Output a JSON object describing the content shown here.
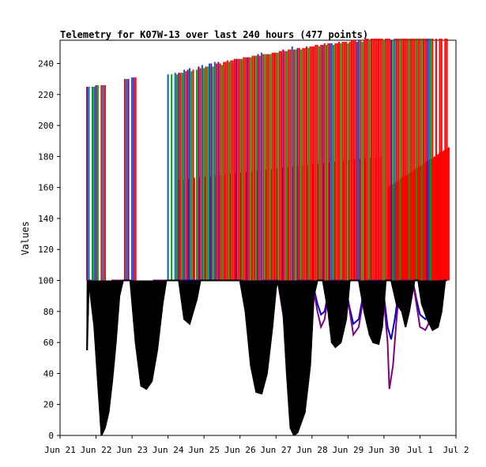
{
  "chart_data": {
    "type": "line",
    "title": "Telemetry for K07W-13 over last 240 hours (477 points)",
    "xlabel": "",
    "ylabel": "Values",
    "x_ticks": [
      "Jun 21",
      "Jun 22",
      "Jun 23",
      "Jun 24",
      "Jun 25",
      "Jun 26",
      "Jun 27",
      "Jun 28",
      "Jun 29",
      "Jun 30",
      "Jul 1",
      "Jul 2"
    ],
    "x_range_days": [
      0,
      11
    ],
    "ylim": [
      0,
      255
    ],
    "y_ticks": [
      0,
      20,
      40,
      60,
      80,
      100,
      120,
      140,
      160,
      180,
      200,
      220,
      240
    ],
    "grid": false,
    "legend": "none",
    "series": [
      {
        "color": "#000000",
        "role": "baseline",
        "points": [
          [
            0.75,
            55
          ],
          [
            0.8,
            100
          ],
          [
            0.95,
            70
          ],
          [
            1.05,
            35
          ],
          [
            1.15,
            0
          ],
          [
            1.25,
            5
          ],
          [
            1.35,
            15
          ],
          [
            1.45,
            35
          ],
          [
            1.55,
            60
          ],
          [
            1.65,
            90
          ],
          [
            1.75,
            100
          ],
          [
            1.95,
            100
          ],
          [
            2.1,
            60
          ],
          [
            2.25,
            32
          ],
          [
            2.4,
            30
          ],
          [
            2.55,
            35
          ],
          [
            2.7,
            55
          ],
          [
            2.85,
            85
          ],
          [
            2.95,
            100
          ],
          [
            3.3,
            100
          ],
          [
            3.45,
            75
          ],
          [
            3.6,
            72
          ],
          [
            3.7,
            80
          ],
          [
            3.8,
            88
          ],
          [
            3.9,
            100
          ],
          [
            5.0,
            100
          ],
          [
            5.15,
            80
          ],
          [
            5.3,
            45
          ],
          [
            5.45,
            28
          ],
          [
            5.6,
            27
          ],
          [
            5.75,
            40
          ],
          [
            5.9,
            70
          ],
          [
            6.0,
            95
          ],
          [
            6.05,
            100
          ],
          [
            6.2,
            80
          ],
          [
            6.3,
            40
          ],
          [
            6.4,
            5
          ],
          [
            6.5,
            0
          ],
          [
            6.6,
            2
          ],
          [
            6.8,
            15
          ],
          [
            6.95,
            45
          ],
          [
            7.05,
            90
          ],
          [
            7.15,
            100
          ],
          [
            7.3,
            100
          ],
          [
            7.45,
            80
          ],
          [
            7.55,
            60
          ],
          [
            7.65,
            57
          ],
          [
            7.8,
            60
          ],
          [
            7.95,
            75
          ],
          [
            8.05,
            100
          ],
          [
            8.3,
            100
          ],
          [
            8.45,
            80
          ],
          [
            8.6,
            65
          ],
          [
            8.7,
            60
          ],
          [
            8.85,
            59
          ],
          [
            8.95,
            70
          ],
          [
            9.05,
            100
          ],
          [
            9.2,
            100
          ],
          [
            9.35,
            85
          ],
          [
            9.5,
            80
          ],
          [
            9.6,
            70
          ],
          [
            9.7,
            80
          ],
          [
            9.85,
            100
          ],
          [
            9.95,
            100
          ],
          [
            10.05,
            85
          ],
          [
            10.2,
            75
          ],
          [
            10.35,
            68
          ],
          [
            10.5,
            70
          ],
          [
            10.6,
            80
          ],
          [
            10.7,
            100
          ],
          [
            10.75,
            100
          ]
        ]
      },
      {
        "color": "#7f007f",
        "role": "lower envelope",
        "points": [
          [
            0.75,
            100
          ],
          [
            0.85,
            100
          ],
          [
            0.95,
            92
          ],
          [
            1.05,
            80
          ],
          [
            1.15,
            70
          ],
          [
            1.25,
            75
          ],
          [
            1.35,
            95
          ],
          [
            1.45,
            100
          ],
          [
            2.0,
            100
          ],
          [
            2.1,
            85
          ],
          [
            2.2,
            75
          ],
          [
            2.35,
            78
          ],
          [
            2.5,
            92
          ],
          [
            2.6,
            100
          ],
          [
            3.4,
            100
          ],
          [
            3.55,
            93
          ],
          [
            3.65,
            90
          ],
          [
            3.75,
            95
          ],
          [
            3.85,
            100
          ],
          [
            5.1,
            100
          ],
          [
            5.25,
            80
          ],
          [
            5.35,
            72
          ],
          [
            5.45,
            78
          ],
          [
            5.55,
            95
          ],
          [
            5.65,
            100
          ],
          [
            6.05,
            100
          ],
          [
            6.15,
            85
          ],
          [
            6.25,
            70
          ],
          [
            6.4,
            78
          ],
          [
            6.5,
            95
          ],
          [
            6.6,
            100
          ],
          [
            7.0,
            100
          ],
          [
            7.15,
            80
          ],
          [
            7.25,
            70
          ],
          [
            7.35,
            75
          ],
          [
            7.45,
            90
          ],
          [
            7.55,
            100
          ],
          [
            7.9,
            100
          ],
          [
            8.05,
            80
          ],
          [
            8.15,
            65
          ],
          [
            8.3,
            70
          ],
          [
            8.4,
            85
          ],
          [
            8.5,
            100
          ],
          [
            8.95,
            100
          ],
          [
            9.1,
            60
          ],
          [
            9.15,
            30
          ],
          [
            9.25,
            45
          ],
          [
            9.35,
            75
          ],
          [
            9.45,
            100
          ],
          [
            9.8,
            100
          ],
          [
            9.9,
            85
          ],
          [
            10.0,
            70
          ],
          [
            10.15,
            68
          ],
          [
            10.3,
            75
          ],
          [
            10.45,
            90
          ],
          [
            10.55,
            100
          ],
          [
            10.75,
            100
          ]
        ]
      },
      {
        "color": "#0000cc",
        "role": "middle envelope",
        "points": [
          [
            0.75,
            100
          ],
          [
            0.85,
            100
          ],
          [
            0.95,
            90
          ],
          [
            1.05,
            82
          ],
          [
            1.15,
            78
          ],
          [
            1.25,
            82
          ],
          [
            1.35,
            95
          ],
          [
            1.45,
            100
          ],
          [
            2.0,
            100
          ],
          [
            2.1,
            88
          ],
          [
            2.2,
            80
          ],
          [
            2.35,
            82
          ],
          [
            2.5,
            95
          ],
          [
            2.6,
            100
          ],
          [
            5.1,
            100
          ],
          [
            5.25,
            82
          ],
          [
            5.35,
            78
          ],
          [
            5.45,
            82
          ],
          [
            5.55,
            96
          ],
          [
            5.65,
            100
          ],
          [
            6.05,
            100
          ],
          [
            6.15,
            88
          ],
          [
            6.25,
            80
          ],
          [
            6.4,
            82
          ],
          [
            6.5,
            95
          ],
          [
            6.6,
            100
          ],
          [
            7.0,
            100
          ],
          [
            7.15,
            85
          ],
          [
            7.25,
            78
          ],
          [
            7.35,
            80
          ],
          [
            7.45,
            92
          ],
          [
            7.55,
            100
          ],
          [
            7.9,
            100
          ],
          [
            8.05,
            82
          ],
          [
            8.15,
            72
          ],
          [
            8.3,
            75
          ],
          [
            8.4,
            88
          ],
          [
            8.5,
            100
          ],
          [
            8.95,
            100
          ],
          [
            9.1,
            70
          ],
          [
            9.2,
            62
          ],
          [
            9.3,
            75
          ],
          [
            9.45,
            100
          ],
          [
            9.8,
            100
          ],
          [
            9.9,
            88
          ],
          [
            10.0,
            78
          ],
          [
            10.15,
            75
          ],
          [
            10.3,
            80
          ],
          [
            10.45,
            92
          ],
          [
            10.55,
            100
          ],
          [
            10.75,
            100
          ]
        ]
      }
    ],
    "spikes": [
      {
        "color": "#7f007f",
        "x_days": [
          0.75,
          1.0,
          1.9,
          2.05,
          3.3,
          3.55,
          3.85,
          4.2,
          4.4,
          4.9,
          5.2,
          5.5,
          6.2,
          6.6,
          7.3,
          7.5,
          8.25,
          9.2,
          10.2
        ],
        "height": [
          225,
          226,
          230,
          231,
          234,
          236,
          238,
          240,
          241,
          243,
          244,
          246,
          249,
          250,
          252,
          253,
          254,
          255,
          256
        ]
      },
      {
        "color": "#0060c0",
        "x_days": [
          0.8,
          0.95,
          1.2,
          1.85,
          2.0,
          3.0,
          3.2,
          3.45,
          3.6,
          3.95,
          4.15,
          4.3,
          5.6,
          6.45,
          7.55,
          8.3,
          9.3,
          10.25
        ],
        "height": [
          225,
          225,
          226,
          230,
          231,
          233,
          234,
          236,
          237,
          239,
          240,
          241,
          247,
          251,
          253,
          255,
          256,
          256
        ]
      },
      {
        "color": "#00a000",
        "x_days": [
          0.9,
          1.05,
          3.1,
          3.25,
          3.4,
          3.65,
          3.8,
          4.0,
          4.1,
          4.25,
          4.5,
          4.7,
          5.05,
          5.3,
          5.45,
          5.7,
          5.85,
          6.05,
          6.3,
          6.55,
          6.7,
          6.9,
          7.2,
          7.4,
          7.6,
          7.8,
          8.0,
          8.4,
          8.6,
          9.0,
          9.25,
          9.45,
          9.7,
          9.9,
          10.05,
          10.3
        ],
        "height": [
          225,
          226,
          233,
          233,
          234,
          235,
          236,
          237,
          238,
          238,
          239,
          241,
          243,
          244,
          245,
          246,
          246,
          247,
          248,
          249,
          249,
          250,
          251,
          252,
          252,
          253,
          253,
          254,
          255,
          255,
          255,
          256,
          256,
          256,
          256,
          256
        ]
      },
      {
        "color": "#ff0000",
        "x_days": [
          1.15,
          1.25,
          1.8,
          2.1,
          3.35,
          3.5,
          3.7,
          3.9,
          4.05,
          4.35,
          4.45,
          4.55,
          4.6,
          4.65,
          4.75,
          4.8,
          4.85,
          4.95,
          5.0,
          5.1,
          5.15,
          5.25,
          5.35,
          5.4,
          5.55,
          5.65,
          5.75,
          5.8,
          5.9,
          5.95,
          6.0,
          6.1,
          6.15,
          6.25,
          6.35,
          6.4,
          6.5,
          6.65,
          6.75,
          6.8,
          6.85,
          6.95,
          7.0,
          7.05,
          7.1,
          7.15,
          7.25,
          7.35,
          7.45,
          7.65,
          7.7,
          7.75,
          7.85,
          7.9,
          7.95,
          8.05,
          8.1,
          8.15,
          8.2,
          8.35,
          8.45,
          8.5,
          8.55,
          8.65,
          8.7,
          8.75,
          8.8,
          8.85,
          8.9,
          8.95,
          9.05,
          9.1,
          9.15,
          9.35,
          9.4,
          9.5,
          9.55,
          9.6,
          9.65,
          9.75,
          9.8,
          9.85,
          9.95,
          10.0,
          10.1,
          10.15,
          10.35,
          10.45,
          10.55,
          10.6,
          10.7,
          10.75
        ],
        "height": [
          226,
          226,
          230,
          231,
          234,
          235,
          236,
          237,
          238,
          240,
          240,
          241,
          241,
          242,
          242,
          242,
          243,
          243,
          243,
          244,
          244,
          244,
          245,
          245,
          245,
          246,
          246,
          246,
          247,
          247,
          247,
          248,
          248,
          248,
          249,
          249,
          249,
          250,
          250,
          250,
          251,
          251,
          251,
          251,
          252,
          252,
          252,
          253,
          253,
          253,
          253,
          254,
          254,
          254,
          254,
          254,
          255,
          255,
          255,
          255,
          255,
          256,
          256,
          256,
          256,
          256,
          256,
          256,
          256,
          256,
          256,
          256,
          256,
          256,
          256,
          256,
          256,
          256,
          256,
          256,
          256,
          256,
          256,
          256,
          256,
          256,
          256,
          256,
          256,
          256,
          256,
          256
        ]
      }
    ],
    "secondary_spike_level": [
      {
        "color": "#ff0000",
        "range_days": [
          3.3,
          8.9
        ],
        "value_start": 165,
        "value_end": 180
      },
      {
        "color": "#ff0000",
        "range_days": [
          9.1,
          10.8
        ],
        "value_start": 160,
        "value_end": 186
      }
    ]
  }
}
